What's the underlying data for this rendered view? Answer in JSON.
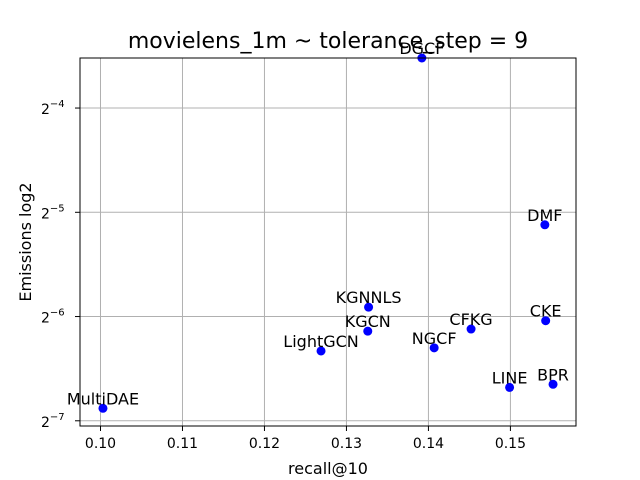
{
  "chart_data": {
    "type": "scatter",
    "title": "movielens_1m ~ tolerance_step = 9",
    "xlabel": "recall@10",
    "ylabel": "Emissions log2",
    "xlim": [
      0.0975,
      0.158
    ],
    "ylim_log2": [
      -7.05,
      -3.52
    ],
    "y_scale": "log2",
    "grid": true,
    "marker_color": "#0000ff",
    "x_ticks": [
      {
        "value": 0.1,
        "label": "0.10"
      },
      {
        "value": 0.11,
        "label": "0.11"
      },
      {
        "value": 0.12,
        "label": "0.12"
      },
      {
        "value": 0.13,
        "label": "0.13"
      },
      {
        "value": 0.14,
        "label": "0.14"
      },
      {
        "value": 0.15,
        "label": "0.15"
      }
    ],
    "y_ticks": [
      {
        "exp": -4,
        "base": "2",
        "sup": "−4"
      },
      {
        "exp": -5,
        "base": "2",
        "sup": "−5"
      },
      {
        "exp": -6,
        "base": "2",
        "sup": "−6"
      },
      {
        "exp": -7,
        "base": "2",
        "sup": "−7"
      }
    ],
    "points": [
      {
        "label": "DGCF",
        "x": 0.1392,
        "log2_y": -3.52
      },
      {
        "label": "DMF",
        "x": 0.1542,
        "log2_y": -5.12
      },
      {
        "label": "KGNNLS",
        "x": 0.1327,
        "log2_y": -5.91
      },
      {
        "label": "KGCN",
        "x": 0.1326,
        "log2_y": -6.14
      },
      {
        "label": "CFKG",
        "x": 0.1452,
        "log2_y": -6.12
      },
      {
        "label": "CKE",
        "x": 0.1543,
        "log2_y": -6.04
      },
      {
        "label": "LightGCN",
        "x": 0.1269,
        "log2_y": -6.33
      },
      {
        "label": "NGCF",
        "x": 0.1407,
        "log2_y": -6.3
      },
      {
        "label": "LINE",
        "x": 0.1499,
        "log2_y": -6.68
      },
      {
        "label": "BPR",
        "x": 0.1552,
        "log2_y": -6.65
      },
      {
        "label": "MultiDAE",
        "x": 0.1003,
        "log2_y": -6.88
      }
    ]
  }
}
